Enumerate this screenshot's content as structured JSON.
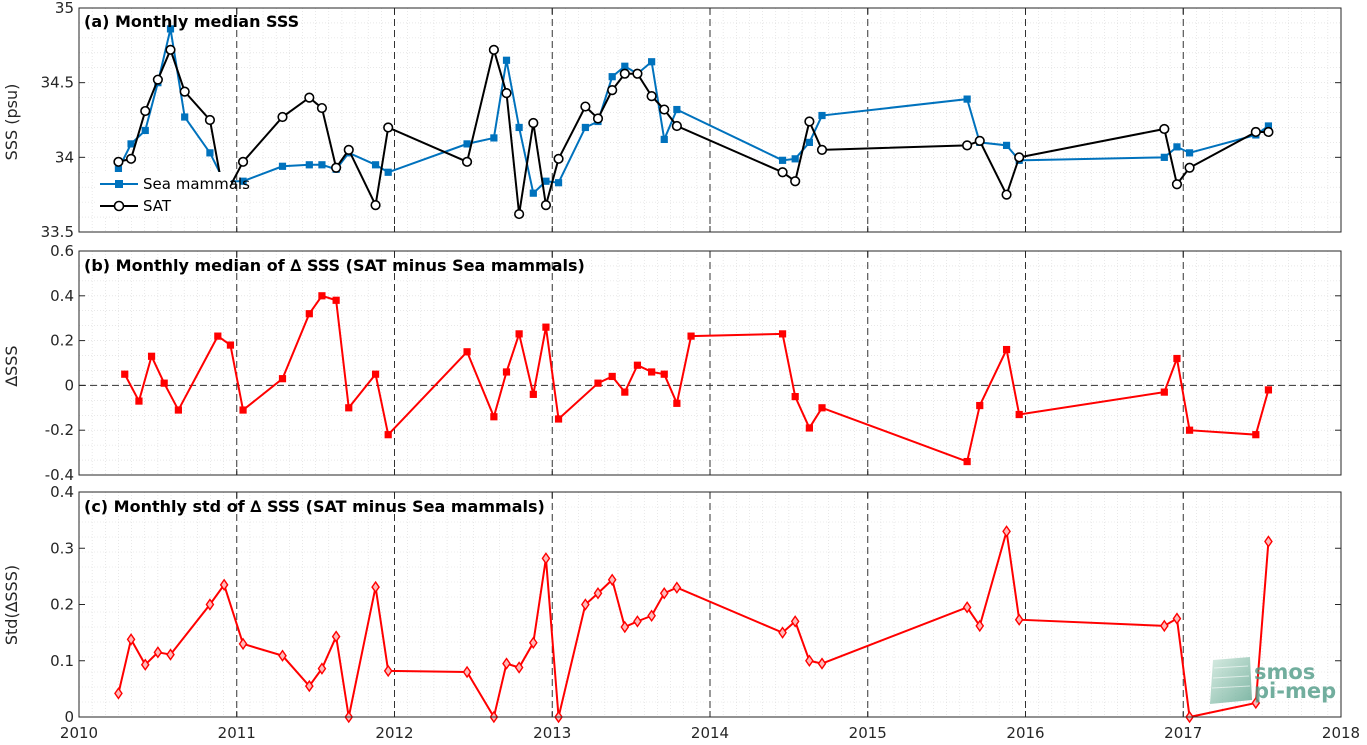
{
  "chart_data": [
    {
      "type": "line",
      "title": "(a) Monthly median SSS",
      "ylabel": "SSS (psu)",
      "xlim": [
        2010,
        2018
      ],
      "ylim": [
        33.5,
        35
      ],
      "yticks": [
        "33.5",
        "34",
        "34.5",
        "35"
      ],
      "xticks": [
        "2010",
        "2011",
        "2012",
        "2013",
        "2014",
        "2015",
        "2016",
        "2017",
        "2018"
      ],
      "grid": true,
      "legend_position": "lower-left",
      "series": [
        {
          "name": "Sea mammals",
          "color": "#0072bd",
          "marker": "square",
          "x": [
            2010.25,
            2010.33,
            2010.42,
            2010.5,
            2010.58,
            2010.67,
            2010.83,
            2010.92,
            2011.04,
            2011.29,
            2011.46,
            2011.54,
            2011.63,
            2011.71,
            2011.88,
            2011.96,
            2012.46,
            2012.63,
            2012.71,
            2012.79,
            2012.88,
            2012.96,
            2013.04,
            2013.21,
            2013.29,
            2013.38,
            2013.46,
            2013.54,
            2013.63,
            2013.71,
            2013.79,
            2014.46,
            2014.54,
            2014.63,
            2014.71,
            2015.63,
            2015.71,
            2015.88,
            2015.96,
            2016.88,
            2016.96,
            2017.04,
            2017.46,
            2017.54
          ],
          "y": [
            33.92,
            34.09,
            34.18,
            34.5,
            34.86,
            34.27,
            34.03,
            33.84,
            33.84,
            33.94,
            33.95,
            33.95,
            33.92,
            34.03,
            33.95,
            33.9,
            34.09,
            34.13,
            34.65,
            34.2,
            33.76,
            33.84,
            33.83,
            34.2,
            34.24,
            34.54,
            34.61,
            34.56,
            34.64,
            34.12,
            34.32,
            33.98,
            33.99,
            34.1,
            34.28,
            34.39,
            34.1,
            34.08,
            33.98,
            34.0,
            34.07,
            34.03,
            34.15,
            34.21
          ]
        },
        {
          "name": "SAT",
          "color": "#000000",
          "marker": "circle",
          "x": [
            2010.25,
            2010.33,
            2010.42,
            2010.5,
            2010.58,
            2010.67,
            2010.83,
            2010.92,
            2011.04,
            2011.29,
            2011.46,
            2011.54,
            2011.63,
            2011.71,
            2011.88,
            2011.96,
            2012.46,
            2012.63,
            2012.71,
            2012.79,
            2012.88,
            2012.96,
            2013.04,
            2013.21,
            2013.29,
            2013.38,
            2013.46,
            2013.54,
            2013.63,
            2013.71,
            2013.79,
            2014.46,
            2014.54,
            2014.63,
            2014.71,
            2015.63,
            2015.71,
            2015.88,
            2015.96,
            2016.88,
            2016.96,
            2017.04,
            2017.46,
            2017.54
          ],
          "y": [
            33.97,
            33.99,
            34.31,
            34.52,
            34.72,
            34.44,
            34.25,
            33.73,
            33.97,
            34.27,
            34.4,
            34.33,
            33.93,
            34.05,
            33.68,
            34.2,
            33.97,
            34.72,
            34.43,
            33.62,
            34.23,
            33.68,
            33.99,
            34.34,
            34.26,
            34.45,
            34.56,
            34.56,
            34.41,
            34.32,
            34.21,
            33.9,
            33.84,
            34.24,
            34.05,
            34.08,
            34.11,
            33.75,
            34.0,
            34.19,
            33.82,
            33.93,
            34.17,
            34.17
          ]
        }
      ]
    },
    {
      "type": "line",
      "title": "(b) Monthly median of ∆ SSS (SAT minus Sea mammals)",
      "ylabel": "∆SSS",
      "xlim": [
        2010,
        2018
      ],
      "ylim": [
        -0.4,
        0.6
      ],
      "yticks": [
        "-0.4",
        "-0.2",
        "0",
        "0.2",
        "0.4",
        "0.6"
      ],
      "xticks": [
        "2010",
        "2011",
        "2012",
        "2013",
        "2014",
        "2015",
        "2016",
        "2017",
        "2018"
      ],
      "grid": true,
      "reference_line_y": 0,
      "series": [
        {
          "color": "#ff0000",
          "marker": "square",
          "x": [
            2010.29,
            2010.38,
            2010.46,
            2010.54,
            2010.63,
            2010.88,
            2010.96,
            2011.04,
            2011.29,
            2011.46,
            2011.54,
            2011.63,
            2011.71,
            2011.88,
            2011.96,
            2012.46,
            2012.63,
            2012.71,
            2012.79,
            2012.88,
            2012.96,
            2013.04,
            2013.29,
            2013.38,
            2013.46,
            2013.54,
            2013.63,
            2013.71,
            2013.79,
            2013.88,
            2014.46,
            2014.54,
            2014.63,
            2014.71,
            2015.63,
            2015.71,
            2015.88,
            2015.96,
            2016.88,
            2016.96,
            2017.04,
            2017.46,
            2017.54
          ],
          "y": [
            0.05,
            -0.07,
            0.13,
            0.01,
            -0.11,
            0.22,
            0.18,
            -0.11,
            0.03,
            0.32,
            0.4,
            0.38,
            -0.1,
            0.05,
            -0.22,
            0.15,
            -0.14,
            0.06,
            0.23,
            -0.04,
            0.26,
            -0.15,
            0.01,
            0.04,
            -0.03,
            0.09,
            0.06,
            0.05,
            -0.08,
            0.22,
            0.23,
            -0.05,
            -0.19,
            -0.1,
            -0.34,
            -0.09,
            0.16,
            -0.13,
            -0.03,
            0.12,
            -0.2,
            -0.22,
            -0.02
          ]
        }
      ]
    },
    {
      "type": "line",
      "title": "(c) Monthly std of ∆ SSS (SAT minus Sea mammals)",
      "ylabel": "Std(∆SSS)",
      "xlim": [
        2010,
        2018
      ],
      "ylim": [
        0,
        0.4
      ],
      "yticks": [
        "0",
        "0.1",
        "0.2",
        "0.3",
        "0.4"
      ],
      "xticks": [
        "2010",
        "2011",
        "2012",
        "2013",
        "2014",
        "2015",
        "2016",
        "2017",
        "2018"
      ],
      "grid": true,
      "series": [
        {
          "color": "#ff0000",
          "marker": "diamond",
          "x": [
            2010.25,
            2010.33,
            2010.42,
            2010.5,
            2010.58,
            2010.83,
            2010.92,
            2011.04,
            2011.29,
            2011.46,
            2011.54,
            2011.63,
            2011.71,
            2011.88,
            2011.96,
            2012.46,
            2012.63,
            2012.71,
            2012.79,
            2012.88,
            2012.96,
            2013.04,
            2013.21,
            2013.29,
            2013.38,
            2013.46,
            2013.54,
            2013.63,
            2013.71,
            2013.79,
            2014.46,
            2014.54,
            2014.63,
            2014.71,
            2015.63,
            2015.71,
            2015.88,
            2015.96,
            2016.88,
            2016.96,
            2017.04,
            2017.46,
            2017.54
          ],
          "y": [
            0.042,
            0.138,
            0.093,
            0.115,
            0.111,
            0.2,
            0.235,
            0.13,
            0.109,
            0.055,
            0.086,
            0.143,
            0.0,
            0.231,
            0.082,
            0.08,
            0.0,
            0.095,
            0.088,
            0.132,
            0.282,
            0.0,
            0.2,
            0.22,
            0.244,
            0.16,
            0.17,
            0.18,
            0.22,
            0.23,
            0.15,
            0.17,
            0.1,
            0.095,
            0.195,
            0.162,
            0.33,
            0.173,
            0.162,
            0.175,
            0.0,
            0.025,
            0.312
          ]
        }
      ]
    }
  ],
  "logo": {
    "line1": "smos",
    "line2": "pi-mep"
  },
  "colors": {
    "sea_mammals": "#0072bd",
    "sat": "#000000",
    "delta": "#ff0000",
    "logo": "#4f9a86"
  }
}
